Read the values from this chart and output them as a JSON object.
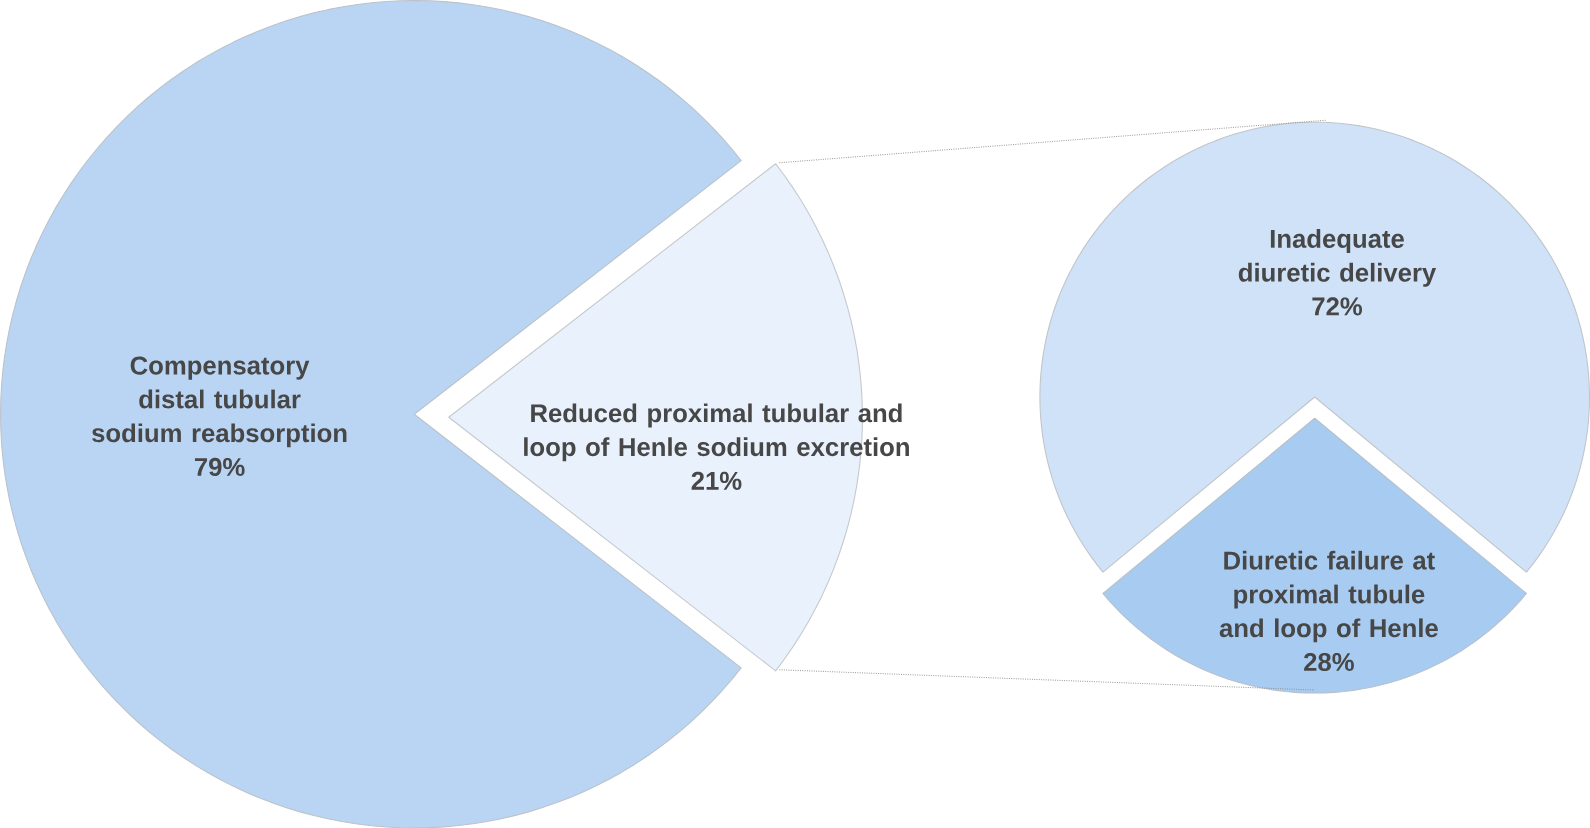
{
  "chart_data": [
    {
      "type": "pie",
      "categories": [
        "Compensatory distal tubular sodium reabsorption",
        "Reduced proximal tubular and loop of Henle sodium excretion"
      ],
      "values": [
        79,
        21
      ],
      "value_labels": [
        "79%",
        "21%"
      ],
      "colors": [
        "#b9d5f3",
        "#e8f1fc"
      ]
    },
    {
      "type": "pie",
      "categories": [
        "Inadequate diuretic delivery",
        "Diuretic failure at proximal tubule and loop of Henle"
      ],
      "values": [
        72,
        28
      ],
      "value_labels": [
        "72%",
        "28%"
      ],
      "colors": [
        "#cfe2f7",
        "#a8cbf1"
      ]
    }
  ]
}
